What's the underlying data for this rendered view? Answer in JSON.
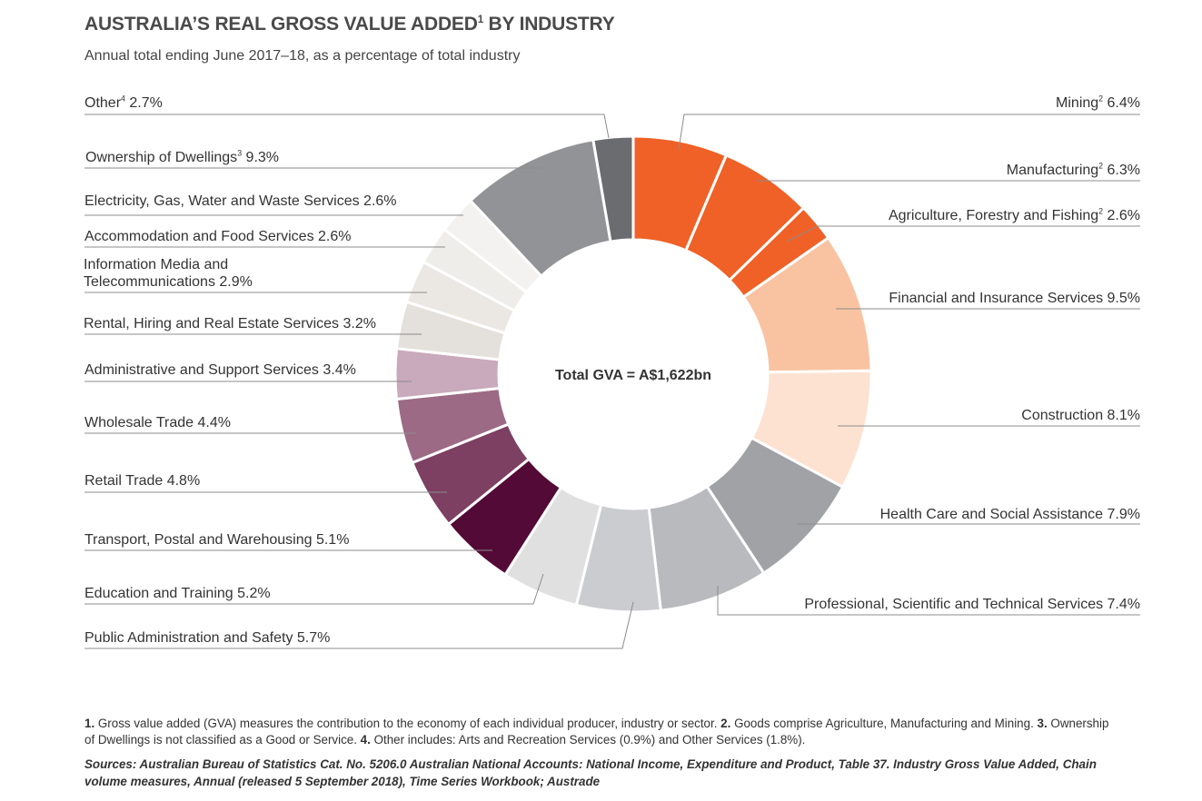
{
  "header": {
    "title": "AUSTRALIA’S REAL GROSS VALUE ADDED",
    "title_sup": "1",
    "title_rest": " BY INDUSTRY",
    "subtitle": "Annual total ending June 2017–18, as a percentage of total industry"
  },
  "center_label": "Total GVA = A$1,622bn",
  "labels": {
    "mining": {
      "name": "Mining",
      "sup": "2",
      "value": " 6.4%"
    },
    "manufacturing": {
      "name": "Manufacturing",
      "sup": "2",
      "value": " 6.3%"
    },
    "agriculture": {
      "name": "Agriculture, Forestry and Fishing",
      "sup": "2",
      "value": " 2.6%"
    },
    "financial": {
      "text": "Financial and Insurance Services 9.5%"
    },
    "construction": {
      "text": "Construction 8.1%"
    },
    "health": {
      "text": "Health Care and Social Assistance 7.9%"
    },
    "professional": {
      "text": "Professional, Scientific and Technical Services 7.4%"
    },
    "public_admin": {
      "text": "Public Administration and Safety 5.7%"
    },
    "education": {
      "text": "Education and Training 5.2%"
    },
    "transport": {
      "text": "Transport, Postal and Warehousing 5.1%"
    },
    "retail": {
      "text": "Retail Trade  4.8%"
    },
    "wholesale": {
      "text": "Wholesale Trade 4.4%"
    },
    "administrative": {
      "text": "Administrative and Support Services 3.4%"
    },
    "rental": {
      "text": "Rental, Hiring and Real Estate Services 3.2%"
    },
    "info_media_line1": "Information Media and",
    "info_media_line2": "Telecommunications 2.9%",
    "accommodation": {
      "text": "Accommodation and Food Services 2.6%"
    },
    "electricity": {
      "text": "Electricity, Gas, Water and Waste Services 2.6%"
    },
    "dwellings": {
      "name": "Ownership of Dwellings",
      "sup": "3",
      "value": " 9.3%"
    },
    "other": {
      "name": "Other",
      "sup": "4",
      "value": " 2.7%"
    }
  },
  "footnotes": {
    "n1": "1.",
    "t1": " Gross value added (GVA) measures the contribution to the economy of each individual producer, industry or sector. ",
    "n2": "2.",
    "t2": " Goods comprise Agriculture, Manufacturing and Mining. ",
    "n3": "3.",
    "t3": " Ownership of Dwellings is not classified as a Good or Service. ",
    "n4": "4.",
    "t4": " Other includes: Arts and Recreation Services (0.9%) and Other Services (1.8%).",
    "sources": "Sources: Australian Bureau of Statistics Cat. No. 5206.0 Australian National Accounts: National Income, Expenditure and Product, Table 37. Industry Gross Value Added, Chain volume measures, Annual (released 5 September 2018), Time Series Workbook; Austrade"
  },
  "chart_data": {
    "type": "pie",
    "style": "donut",
    "title": "AUSTRALIA’S REAL GROSS VALUE ADDED BY INDUSTRY",
    "subtitle": "Annual total ending June 2017–18, as a percentage of total industry",
    "center_text": "Total GVA = A$1,622bn",
    "unit": "%",
    "slices": [
      {
        "label": "Mining",
        "value": 6.4,
        "color": "#ef6127"
      },
      {
        "label": "Manufacturing",
        "value": 6.3,
        "color": "#ef6127"
      },
      {
        "label": "Agriculture, Forestry and Fishing",
        "value": 2.6,
        "color": "#ef6127"
      },
      {
        "label": "Financial and Insurance Services",
        "value": 9.5,
        "color": "#f9c3a2"
      },
      {
        "label": "Construction",
        "value": 8.1,
        "color": "#fde2d2"
      },
      {
        "label": "Health Care and Social Assistance",
        "value": 7.9,
        "color": "#a0a2a5"
      },
      {
        "label": "Professional, Scientific and Technical Services",
        "value": 7.4,
        "color": "#b9babd"
      },
      {
        "label": "Public Administration and Safety",
        "value": 5.7,
        "color": "#cbcccf"
      },
      {
        "label": "Education and Training",
        "value": 5.2,
        "color": "#e0e0e1"
      },
      {
        "label": "Transport, Postal and Warehousing",
        "value": 5.1,
        "color": "#540a37"
      },
      {
        "label": "Retail Trade",
        "value": 4.8,
        "color": "#7d3f62"
      },
      {
        "label": "Wholesale Trade",
        "value": 4.4,
        "color": "#9c6a85"
      },
      {
        "label": "Administrative and Support Services",
        "value": 3.4,
        "color": "#c9a9bc"
      },
      {
        "label": "Rental, Hiring and Real Estate Services",
        "value": 3.2,
        "color": "#e4e0dc"
      },
      {
        "label": "Information Media and Telecommunications",
        "value": 2.9,
        "color": "#ebe8e4"
      },
      {
        "label": "Accommodation and Food Services",
        "value": 2.6,
        "color": "#efedea"
      },
      {
        "label": "Electricity, Gas, Water and Waste Services",
        "value": 2.6,
        "color": "#f3f2f0"
      },
      {
        "label": "Ownership of Dwellings",
        "value": 9.3,
        "color": "#929396"
      },
      {
        "label": "Other",
        "value": 2.7,
        "color": "#6b6c70"
      }
    ]
  }
}
